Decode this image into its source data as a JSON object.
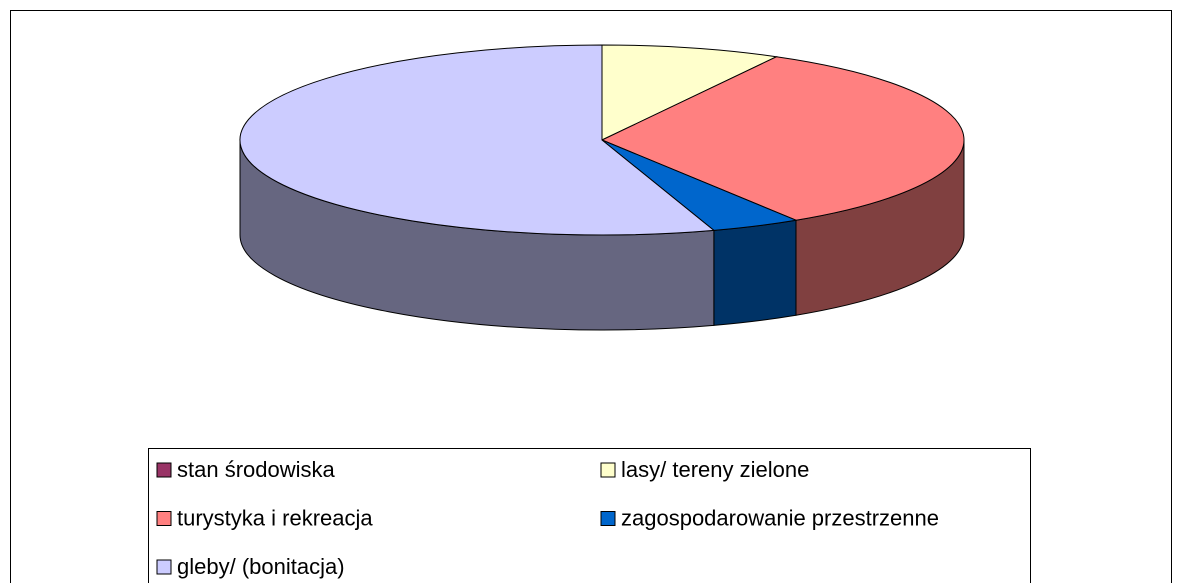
{
  "chart_data": {
    "type": "pie",
    "three_d": true,
    "categories": [
      "stan środowiska",
      "lasy/ tereny zielone",
      "turystyka i rekreacja",
      "zagospodarowanie przestrzenne",
      "gleby/ (bonitacja)"
    ],
    "values": [
      0,
      8,
      33,
      4,
      55
    ],
    "colors": [
      "#993366",
      "#FFFFCC",
      "#FF8080",
      "#0066CC",
      "#CCCCFF"
    ],
    "legend": "bottom"
  }
}
